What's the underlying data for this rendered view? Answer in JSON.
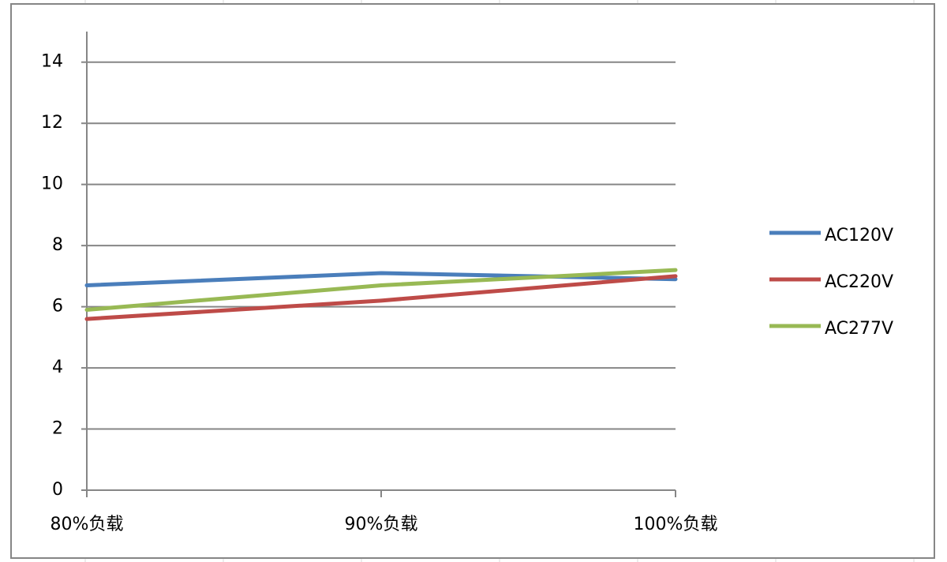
{
  "chart_data": {
    "type": "line",
    "categories": [
      "80%负载",
      "90%负载",
      "100%负载"
    ],
    "series": [
      {
        "name": "AC120V",
        "color": "#4a7ebb",
        "values": [
          6.7,
          7.1,
          6.9
        ]
      },
      {
        "name": "AC220V",
        "color": "#be4b48",
        "values": [
          5.6,
          6.2,
          7.0
        ]
      },
      {
        "name": "AC277V",
        "color": "#98b954",
        "values": [
          5.9,
          6.7,
          7.2
        ]
      }
    ],
    "ylim": [
      0,
      15
    ],
    "yticks": [
      0,
      2,
      4,
      6,
      8,
      10,
      12,
      14
    ],
    "grid": true,
    "legend": "right"
  }
}
